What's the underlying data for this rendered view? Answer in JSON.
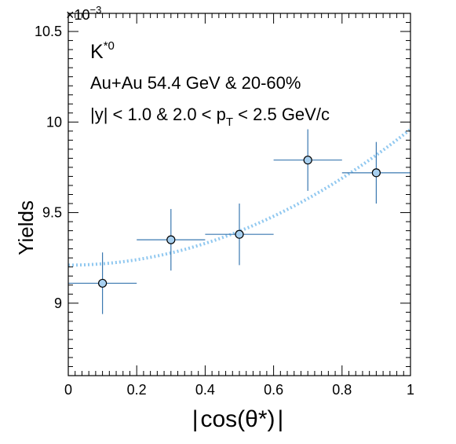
{
  "chart_data": {
    "type": "scatter",
    "exponent_label": "×10",
    "exponent_power": "−3",
    "xlabel_parts": [
      "|",
      "cos(θ*)",
      "|"
    ],
    "ylabel": "Yields",
    "xlim": [
      0,
      1
    ],
    "ylim": [
      8.6,
      10.6
    ],
    "x_ticks": [
      {
        "v": 0,
        "label": "0"
      },
      {
        "v": 0.2,
        "label": "0.2"
      },
      {
        "v": 0.4,
        "label": "0.4"
      },
      {
        "v": 0.6,
        "label": "0.6"
      },
      {
        "v": 0.8,
        "label": "0.8"
      },
      {
        "v": 1,
        "label": "1"
      }
    ],
    "y_ticks": [
      {
        "v": 9,
        "label": "9"
      },
      {
        "v": 9.5,
        "label": "9.5"
      },
      {
        "v": 10,
        "label": "10"
      },
      {
        "v": 10.5,
        "label": "10.5"
      }
    ],
    "annotations": {
      "particle": "K",
      "particle_sup": "*0",
      "system": "Au+Au 54.4 GeV & 20-60%",
      "cuts_pre": "|y| < 1.0 & 2.0 < p",
      "cuts_sub": "T",
      "cuts_post": " < 2.5 GeV/c"
    },
    "points": [
      {
        "x": 0.1,
        "y": 9.11,
        "xerr": 0.1,
        "yerr": 0.17
      },
      {
        "x": 0.3,
        "y": 9.35,
        "xerr": 0.1,
        "yerr": 0.17
      },
      {
        "x": 0.5,
        "y": 9.38,
        "xerr": 0.1,
        "yerr": 0.17
      },
      {
        "x": 0.7,
        "y": 9.79,
        "xerr": 0.1,
        "yerr": 0.17
      },
      {
        "x": 0.9,
        "y": 9.72,
        "xerr": 0.1,
        "yerr": 0.17
      }
    ],
    "fit": {
      "style": "dotted",
      "p0": 9.21,
      "p2": 0.75
    },
    "colors": {
      "marker_fill": "#a8d0f0",
      "marker_edge": "#000000",
      "error_bar": "#3a78b0",
      "fit": "#90c8f0",
      "frame": "#000000"
    },
    "grid": false,
    "legend": "none"
  }
}
